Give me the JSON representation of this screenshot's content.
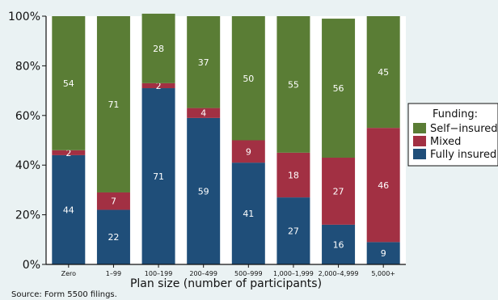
{
  "chart_data": {
    "type": "bar",
    "stacked": true,
    "categories": [
      "Zero",
      "1–99",
      "100–199",
      "200–499",
      "500–999",
      "1,000–1,999",
      "2,000–4,999",
      "5,000+"
    ],
    "series": [
      {
        "name": "Fully insured",
        "color": "#1f4e79",
        "values": [
          44,
          22,
          71,
          59,
          41,
          27,
          16,
          9
        ]
      },
      {
        "name": "Mixed",
        "color": "#a23043",
        "values": [
          2,
          7,
          2,
          4,
          9,
          18,
          27,
          46
        ]
      },
      {
        "name": "Self−insured",
        "color": "#5a7d35",
        "values": [
          54,
          71,
          28,
          37,
          50,
          55,
          56,
          45
        ]
      }
    ],
    "ylim": [
      0,
      100
    ],
    "yticks": [
      "0%",
      "20%",
      "40%",
      "60%",
      "80%",
      "100%"
    ],
    "xlabel": "Plan size (number of participants)",
    "ylabel": "",
    "legend": {
      "title": "Funding:",
      "position": "right"
    },
    "grid": false
  },
  "source_note": "Source: Form 5500 filings."
}
